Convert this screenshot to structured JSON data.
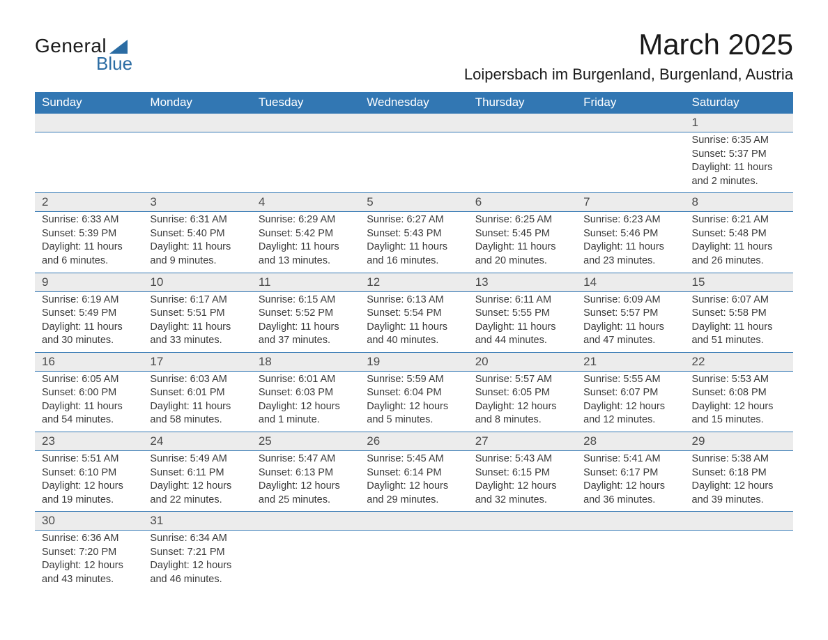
{
  "logo": {
    "word1": "General",
    "word2": "Blue"
  },
  "title": "March 2025",
  "location": "Loipersbach im Burgenland, Burgenland, Austria",
  "colors": {
    "header_bg": "#3277b3",
    "header_text": "#ffffff",
    "daynum_bg": "#ececec",
    "text": "#3a3a3a",
    "border": "#3277b3",
    "logo_accent": "#2b6ca3"
  },
  "typography": {
    "title_fontsize": 42,
    "location_fontsize": 22,
    "header_fontsize": 17,
    "daynum_fontsize": 17,
    "body_fontsize": 14.5
  },
  "weekdays": [
    "Sunday",
    "Monday",
    "Tuesday",
    "Wednesday",
    "Thursday",
    "Friday",
    "Saturday"
  ],
  "weeks": [
    [
      null,
      null,
      null,
      null,
      null,
      null,
      {
        "n": "1",
        "sunrise": "6:35 AM",
        "sunset": "5:37 PM",
        "daylight": "11 hours and 2 minutes."
      }
    ],
    [
      {
        "n": "2",
        "sunrise": "6:33 AM",
        "sunset": "5:39 PM",
        "daylight": "11 hours and 6 minutes."
      },
      {
        "n": "3",
        "sunrise": "6:31 AM",
        "sunset": "5:40 PM",
        "daylight": "11 hours and 9 minutes."
      },
      {
        "n": "4",
        "sunrise": "6:29 AM",
        "sunset": "5:42 PM",
        "daylight": "11 hours and 13 minutes."
      },
      {
        "n": "5",
        "sunrise": "6:27 AM",
        "sunset": "5:43 PM",
        "daylight": "11 hours and 16 minutes."
      },
      {
        "n": "6",
        "sunrise": "6:25 AM",
        "sunset": "5:45 PM",
        "daylight": "11 hours and 20 minutes."
      },
      {
        "n": "7",
        "sunrise": "6:23 AM",
        "sunset": "5:46 PM",
        "daylight": "11 hours and 23 minutes."
      },
      {
        "n": "8",
        "sunrise": "6:21 AM",
        "sunset": "5:48 PM",
        "daylight": "11 hours and 26 minutes."
      }
    ],
    [
      {
        "n": "9",
        "sunrise": "6:19 AM",
        "sunset": "5:49 PM",
        "daylight": "11 hours and 30 minutes."
      },
      {
        "n": "10",
        "sunrise": "6:17 AM",
        "sunset": "5:51 PM",
        "daylight": "11 hours and 33 minutes."
      },
      {
        "n": "11",
        "sunrise": "6:15 AM",
        "sunset": "5:52 PM",
        "daylight": "11 hours and 37 minutes."
      },
      {
        "n": "12",
        "sunrise": "6:13 AM",
        "sunset": "5:54 PM",
        "daylight": "11 hours and 40 minutes."
      },
      {
        "n": "13",
        "sunrise": "6:11 AM",
        "sunset": "5:55 PM",
        "daylight": "11 hours and 44 minutes."
      },
      {
        "n": "14",
        "sunrise": "6:09 AM",
        "sunset": "5:57 PM",
        "daylight": "11 hours and 47 minutes."
      },
      {
        "n": "15",
        "sunrise": "6:07 AM",
        "sunset": "5:58 PM",
        "daylight": "11 hours and 51 minutes."
      }
    ],
    [
      {
        "n": "16",
        "sunrise": "6:05 AM",
        "sunset": "6:00 PM",
        "daylight": "11 hours and 54 minutes."
      },
      {
        "n": "17",
        "sunrise": "6:03 AM",
        "sunset": "6:01 PM",
        "daylight": "11 hours and 58 minutes."
      },
      {
        "n": "18",
        "sunrise": "6:01 AM",
        "sunset": "6:03 PM",
        "daylight": "12 hours and 1 minute."
      },
      {
        "n": "19",
        "sunrise": "5:59 AM",
        "sunset": "6:04 PM",
        "daylight": "12 hours and 5 minutes."
      },
      {
        "n": "20",
        "sunrise": "5:57 AM",
        "sunset": "6:05 PM",
        "daylight": "12 hours and 8 minutes."
      },
      {
        "n": "21",
        "sunrise": "5:55 AM",
        "sunset": "6:07 PM",
        "daylight": "12 hours and 12 minutes."
      },
      {
        "n": "22",
        "sunrise": "5:53 AM",
        "sunset": "6:08 PM",
        "daylight": "12 hours and 15 minutes."
      }
    ],
    [
      {
        "n": "23",
        "sunrise": "5:51 AM",
        "sunset": "6:10 PM",
        "daylight": "12 hours and 19 minutes."
      },
      {
        "n": "24",
        "sunrise": "5:49 AM",
        "sunset": "6:11 PM",
        "daylight": "12 hours and 22 minutes."
      },
      {
        "n": "25",
        "sunrise": "5:47 AM",
        "sunset": "6:13 PM",
        "daylight": "12 hours and 25 minutes."
      },
      {
        "n": "26",
        "sunrise": "5:45 AM",
        "sunset": "6:14 PM",
        "daylight": "12 hours and 29 minutes."
      },
      {
        "n": "27",
        "sunrise": "5:43 AM",
        "sunset": "6:15 PM",
        "daylight": "12 hours and 32 minutes."
      },
      {
        "n": "28",
        "sunrise": "5:41 AM",
        "sunset": "6:17 PM",
        "daylight": "12 hours and 36 minutes."
      },
      {
        "n": "29",
        "sunrise": "5:38 AM",
        "sunset": "6:18 PM",
        "daylight": "12 hours and 39 minutes."
      }
    ],
    [
      {
        "n": "30",
        "sunrise": "6:36 AM",
        "sunset": "7:20 PM",
        "daylight": "12 hours and 43 minutes."
      },
      {
        "n": "31",
        "sunrise": "6:34 AM",
        "sunset": "7:21 PM",
        "daylight": "12 hours and 46 minutes."
      },
      null,
      null,
      null,
      null,
      null
    ]
  ],
  "labels": {
    "sunrise": "Sunrise: ",
    "sunset": "Sunset: ",
    "daylight": "Daylight: "
  }
}
